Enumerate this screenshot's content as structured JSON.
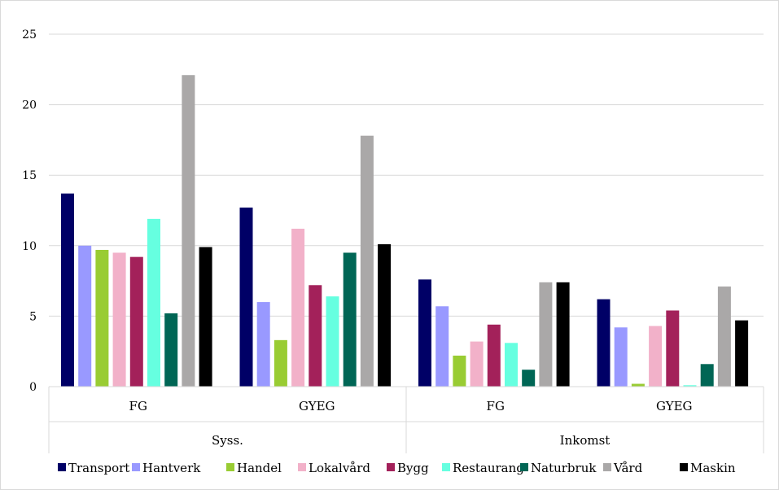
{
  "chart_data": {
    "type": "bar",
    "ylim": [
      0,
      25
    ],
    "yticks": [
      0,
      5,
      10,
      15,
      20,
      25
    ],
    "grid": true,
    "legend_position": "bottom",
    "groups": [
      {
        "label": "Syss.",
        "categories": [
          "FG",
          "GYEG"
        ]
      },
      {
        "label": "Inkomst",
        "categories": [
          "FG",
          "GYEG"
        ]
      }
    ],
    "series": [
      {
        "name": "Transport",
        "color": "#000066",
        "values": [
          13.7,
          12.7,
          7.6,
          6.2
        ]
      },
      {
        "name": "Hantverk",
        "color": "#9999ff",
        "values": [
          10.0,
          6.0,
          5.7,
          4.2
        ]
      },
      {
        "name": "Handel",
        "color": "#99cc33",
        "values": [
          9.7,
          3.3,
          2.2,
          0.2
        ]
      },
      {
        "name": "Lokalvård",
        "color": "#f2b1c9",
        "values": [
          9.5,
          11.2,
          3.2,
          4.3
        ]
      },
      {
        "name": "Bygg",
        "color": "#a3215a",
        "values": [
          9.2,
          7.2,
          4.4,
          5.4
        ]
      },
      {
        "name": "Restaurang",
        "color": "#66ffe0",
        "values": [
          11.9,
          6.4,
          3.1,
          0.1
        ]
      },
      {
        "name": "Naturbruk",
        "color": "#006655",
        "values": [
          5.2,
          9.5,
          1.2,
          1.6
        ]
      },
      {
        "name": "Vård",
        "color": "#aaa8a8",
        "values": [
          22.1,
          17.8,
          7.4,
          7.1
        ]
      },
      {
        "name": "Maskin",
        "color": "#000000",
        "values": [
          9.9,
          10.1,
          7.4,
          4.7
        ]
      }
    ]
  }
}
